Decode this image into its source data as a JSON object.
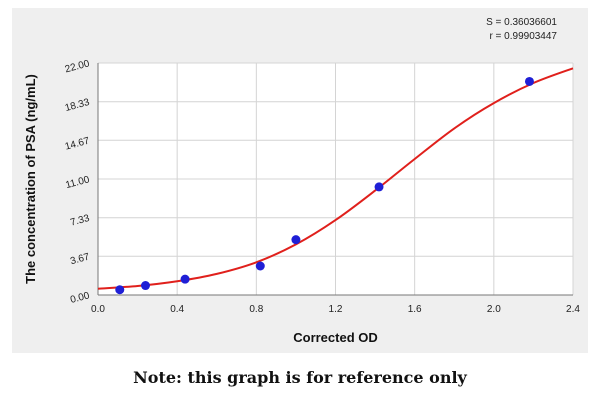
{
  "chart_data": {
    "type": "scatter",
    "title": "",
    "xlabel": "Corrected OD",
    "ylabel": "The concentration of PSA (ng/mL)",
    "xlim": [
      0.0,
      2.4
    ],
    "ylim": [
      0.0,
      22.0
    ],
    "x_ticks": [
      0.0,
      0.4,
      0.8,
      1.2,
      1.6,
      2.0,
      2.4
    ],
    "x_tick_labels": [
      "0.0",
      "0.4",
      "0.8",
      "1.2",
      "1.6",
      "2.0",
      "2.4"
    ],
    "y_ticks": [
      0.0,
      3.67,
      7.33,
      11.0,
      14.67,
      18.33,
      22.0
    ],
    "y_tick_labels": [
      "0.00",
      "3.67",
      "7.33",
      "11.00",
      "14.67",
      "18.33",
      "22.00"
    ],
    "grid": true,
    "points": {
      "x": [
        0.11,
        0.24,
        0.44,
        0.82,
        1.0,
        1.42,
        2.18
      ],
      "y": [
        0.5,
        0.9,
        1.5,
        2.75,
        5.25,
        10.25,
        20.25
      ]
    },
    "fit_curve": {
      "x": [
        0.0,
        0.2,
        0.4,
        0.6,
        0.8,
        1.0,
        1.2,
        1.4,
        1.6,
        1.8,
        2.0,
        2.2,
        2.4
      ],
      "y": [
        0.6,
        0.85,
        1.3,
        2.0,
        3.1,
        4.8,
        7.1,
        9.9,
        12.9,
        15.8,
        18.2,
        20.1,
        21.5
      ]
    },
    "annotations": [
      "S = 0.36036601",
      "r = 0.99903447"
    ],
    "colors": {
      "points": "#1f1fd6",
      "curve": "#e0201c",
      "panel_background": "#efefef",
      "plot_background": "#ffffff",
      "grid": "#d4d4d4"
    }
  },
  "note": "Note: this graph is for reference only"
}
